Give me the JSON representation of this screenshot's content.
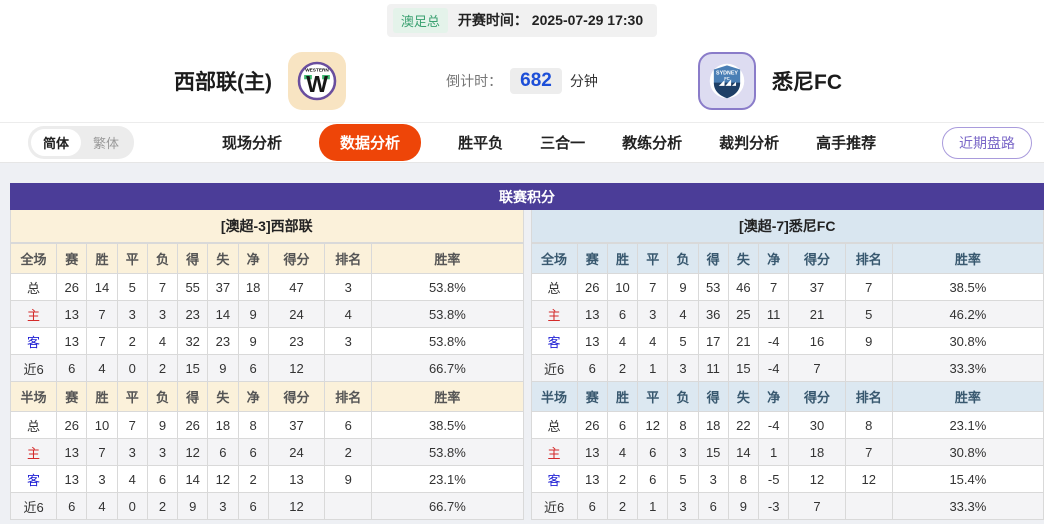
{
  "topbar": {
    "league_badge": "澳足总",
    "kickoff": "开赛时间： 2025-07-29 17:30"
  },
  "header": {
    "home_team": {
      "name": "西部联(主)",
      "logo": "western-united-crest"
    },
    "away_team": {
      "name": "悉尼FC",
      "logo": "sydney-fc-crest"
    },
    "countdown": {
      "label": "倒计时：",
      "value": "682",
      "unit": "分钟"
    }
  },
  "nav": {
    "lang": {
      "simplified": "简体",
      "traditional": "繁体"
    },
    "tabs": [
      {
        "label": "现场分析",
        "active": false
      },
      {
        "label": "数据分析",
        "active": true
      },
      {
        "label": "胜平负",
        "active": false
      },
      {
        "label": "三合一",
        "active": false
      },
      {
        "label": "教练分析",
        "active": false
      },
      {
        "label": "裁判分析",
        "active": false
      },
      {
        "label": "高手推荐",
        "active": false
      }
    ],
    "recent_link": "近期盘路"
  },
  "standings": {
    "title": "联赛积分",
    "columns_full": [
      "全场",
      "赛",
      "胜",
      "平",
      "负",
      "得",
      "失",
      "净",
      "得分",
      "排名",
      "胜率"
    ],
    "columns_half": [
      "半场",
      "赛",
      "胜",
      "平",
      "负",
      "得",
      "失",
      "净",
      "得分",
      "排名",
      "胜率"
    ],
    "home": {
      "subtitle": "[澳超-3]西部联",
      "full": [
        {
          "label": "总",
          "type": "total",
          "cells": [
            "26",
            "14",
            "5",
            "7",
            "55",
            "37",
            "18",
            "47",
            "3",
            "53.8%"
          ]
        },
        {
          "label": "主",
          "type": "home",
          "cells": [
            "13",
            "7",
            "3",
            "3",
            "23",
            "14",
            "9",
            "24",
            "4",
            "53.8%"
          ]
        },
        {
          "label": "客",
          "type": "away",
          "cells": [
            "13",
            "7",
            "2",
            "4",
            "32",
            "23",
            "9",
            "23",
            "3",
            "53.8%"
          ]
        },
        {
          "label": "近6",
          "type": "recent",
          "cells": [
            "6",
            "4",
            "0",
            "2",
            "15",
            "9",
            "6",
            "12",
            "",
            "66.7%"
          ]
        }
      ],
      "half": [
        {
          "label": "总",
          "type": "total",
          "cells": [
            "26",
            "10",
            "7",
            "9",
            "26",
            "18",
            "8",
            "37",
            "6",
            "38.5%"
          ]
        },
        {
          "label": "主",
          "type": "home",
          "cells": [
            "13",
            "7",
            "3",
            "3",
            "12",
            "6",
            "6",
            "24",
            "2",
            "53.8%"
          ]
        },
        {
          "label": "客",
          "type": "away",
          "cells": [
            "13",
            "3",
            "4",
            "6",
            "14",
            "12",
            "2",
            "13",
            "9",
            "23.1%"
          ]
        },
        {
          "label": "近6",
          "type": "recent",
          "cells": [
            "6",
            "4",
            "0",
            "2",
            "9",
            "3",
            "6",
            "12",
            "",
            "66.7%"
          ]
        }
      ]
    },
    "away": {
      "subtitle": "[澳超-7]悉尼FC",
      "full": [
        {
          "label": "总",
          "type": "total",
          "cells": [
            "26",
            "10",
            "7",
            "9",
            "53",
            "46",
            "7",
            "37",
            "7",
            "38.5%"
          ]
        },
        {
          "label": "主",
          "type": "home",
          "cells": [
            "13",
            "6",
            "3",
            "4",
            "36",
            "25",
            "11",
            "21",
            "5",
            "46.2%"
          ]
        },
        {
          "label": "客",
          "type": "away",
          "cells": [
            "13",
            "4",
            "4",
            "5",
            "17",
            "21",
            "-4",
            "16",
            "9",
            "30.8%"
          ]
        },
        {
          "label": "近6",
          "type": "recent",
          "cells": [
            "6",
            "2",
            "1",
            "3",
            "11",
            "15",
            "-4",
            "7",
            "",
            "33.3%"
          ]
        }
      ],
      "half": [
        {
          "label": "总",
          "type": "total",
          "cells": [
            "26",
            "6",
            "12",
            "8",
            "18",
            "22",
            "-4",
            "30",
            "8",
            "23.1%"
          ]
        },
        {
          "label": "主",
          "type": "home",
          "cells": [
            "13",
            "4",
            "6",
            "3",
            "15",
            "14",
            "1",
            "18",
            "7",
            "30.8%"
          ]
        },
        {
          "label": "客",
          "type": "away",
          "cells": [
            "13",
            "2",
            "6",
            "5",
            "3",
            "8",
            "-5",
            "12",
            "12",
            "15.4%"
          ]
        },
        {
          "label": "近6",
          "type": "recent",
          "cells": [
            "6",
            "2",
            "1",
            "3",
            "6",
            "9",
            "-3",
            "7",
            "",
            "33.3%"
          ]
        }
      ]
    }
  },
  "colors": {
    "banner_purple": "#4b3d98",
    "active_tab_orange": "#ee4508",
    "home_header_cream": "#fbf1da",
    "away_header_blue": "#dce8f1",
    "countdown_blue": "#1d4fd8",
    "badge_green": "#3aa070",
    "row_home_red": "#d42a2a",
    "row_away_blue": "#1f1fd4"
  }
}
